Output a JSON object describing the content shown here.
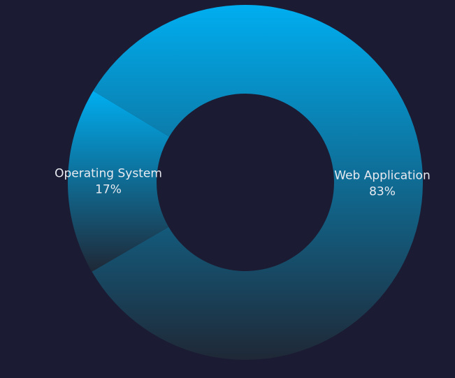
{
  "chart_data": {
    "type": "donut",
    "categories": [
      "Web Application",
      "Operating System"
    ],
    "values": [
      83,
      17
    ],
    "value_labels": [
      "83%",
      "17%"
    ],
    "gradient": [
      "#00aef0",
      "#1f2836"
    ]
  }
}
